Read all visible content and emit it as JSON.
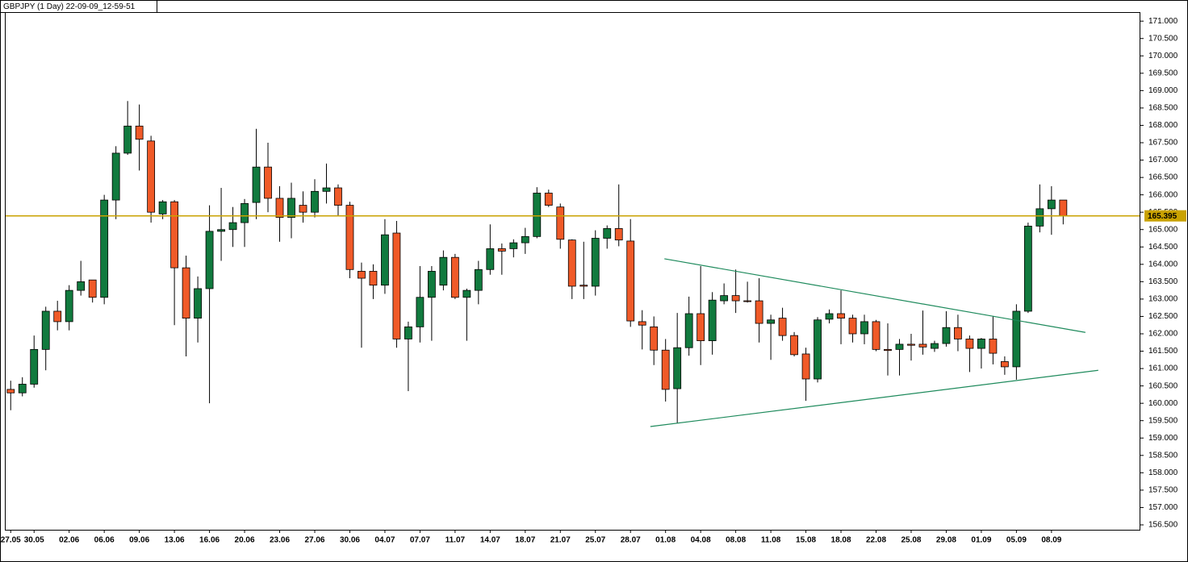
{
  "chart_data": {
    "type": "candlestick",
    "title": "GBPJPY (1 Day) 22-09-09_12-59-51",
    "up_color": "#117a3e",
    "down_color": "#f05a28",
    "ylim": [
      156.36,
      171.26
    ],
    "yticks": [
      {
        "value": 156.5,
        "label": "156.500"
      },
      {
        "value": 157,
        "label": "157.000"
      },
      {
        "value": 157.5,
        "label": "157.500"
      },
      {
        "value": 158,
        "label": "158.000"
      },
      {
        "value": 158.5,
        "label": "158.500"
      },
      {
        "value": 159,
        "label": "159.000"
      },
      {
        "value": 159.5,
        "label": "159.500"
      },
      {
        "value": 160,
        "label": "160.000"
      },
      {
        "value": 160.5,
        "label": "160.500"
      },
      {
        "value": 161,
        "label": "161.000"
      },
      {
        "value": 161.5,
        "label": "161.500"
      },
      {
        "value": 162,
        "label": "162.000"
      },
      {
        "value": 162.5,
        "label": "162.500"
      },
      {
        "value": 163,
        "label": "163.000"
      },
      {
        "value": 163.5,
        "label": "163.500"
      },
      {
        "value": 164,
        "label": "164.000"
      },
      {
        "value": 164.5,
        "label": "164.500"
      },
      {
        "value": 165,
        "label": "165.000"
      },
      {
        "value": 165.5,
        "label": "165.500"
      },
      {
        "value": 166,
        "label": "166.000"
      },
      {
        "value": 166.5,
        "label": "166.500"
      },
      {
        "value": 167,
        "label": "167.000"
      },
      {
        "value": 167.5,
        "label": "167.500"
      },
      {
        "value": 168,
        "label": "168.000"
      },
      {
        "value": 168.5,
        "label": "168.500"
      },
      {
        "value": 169,
        "label": "169.000"
      },
      {
        "value": 169.5,
        "label": "169.500"
      },
      {
        "value": 170,
        "label": "170.000"
      },
      {
        "value": 170.5,
        "label": "170.500"
      },
      {
        "value": 171,
        "label": "171.000"
      }
    ],
    "categories": [
      "27.05",
      null,
      "30.05",
      null,
      null,
      "02.06",
      null,
      null,
      "06.06",
      null,
      null,
      "09.06",
      null,
      null,
      "13.06",
      null,
      null,
      "16.06",
      null,
      null,
      "20.06",
      null,
      null,
      "23.06",
      null,
      null,
      "27.06",
      null,
      null,
      "30.06",
      null,
      null,
      "04.07",
      null,
      null,
      "07.07",
      null,
      null,
      "11.07",
      null,
      null,
      "14.07",
      null,
      null,
      "18.07",
      null,
      null,
      "21.07",
      null,
      null,
      "25.07",
      null,
      null,
      "28.07",
      null,
      null,
      "01.08",
      null,
      null,
      "04.08",
      null,
      null,
      "08.08",
      null,
      null,
      "11.08",
      null,
      null,
      "15.08",
      null,
      null,
      "18.08",
      null,
      null,
      "22.08",
      null,
      null,
      "25.08",
      null,
      null,
      "29.08",
      null,
      null,
      "01.09",
      null,
      null,
      "05.09",
      null,
      null,
      "08.09",
      null
    ],
    "ohlc": [
      [
        160.4,
        160.65,
        159.8,
        160.3
      ],
      [
        160.3,
        160.75,
        160.2,
        160.55
      ],
      [
        160.55,
        161.95,
        160.45,
        161.55
      ],
      [
        161.55,
        162.78,
        160.95,
        162.65
      ],
      [
        162.65,
        162.95,
        162.1,
        162.35
      ],
      [
        162.35,
        163.4,
        162.1,
        163.25
      ],
      [
        163.25,
        164.1,
        163.1,
        163.5
      ],
      [
        163.55,
        163.55,
        162.9,
        163.05
      ],
      [
        163.05,
        166.0,
        162.85,
        165.85
      ],
      [
        165.85,
        167.4,
        165.3,
        167.2
      ],
      [
        167.2,
        168.7,
        167.15,
        167.98
      ],
      [
        167.98,
        168.6,
        166.7,
        167.6
      ],
      [
        167.55,
        167.7,
        165.2,
        165.5
      ],
      [
        165.45,
        165.85,
        165.3,
        165.8
      ],
      [
        165.8,
        165.85,
        162.25,
        163.9
      ],
      [
        163.9,
        164.25,
        161.35,
        162.45
      ],
      [
        162.45,
        163.65,
        161.75,
        163.3
      ],
      [
        163.3,
        165.7,
        160.0,
        164.95
      ],
      [
        164.95,
        166.2,
        164.1,
        165.0
      ],
      [
        165.0,
        165.65,
        164.5,
        165.2
      ],
      [
        165.2,
        165.88,
        164.5,
        165.75
      ],
      [
        165.78,
        167.9,
        165.3,
        166.8
      ],
      [
        166.8,
        167.5,
        165.5,
        165.9
      ],
      [
        165.9,
        166.25,
        164.65,
        165.35
      ],
      [
        165.35,
        166.35,
        164.75,
        165.9
      ],
      [
        165.7,
        166.1,
        165.2,
        165.5
      ],
      [
        165.5,
        166.45,
        165.35,
        166.1
      ],
      [
        166.1,
        166.9,
        165.75,
        166.2
      ],
      [
        166.2,
        166.3,
        165.4,
        165.7
      ],
      [
        165.7,
        165.8,
        163.6,
        163.85
      ],
      [
        163.8,
        164.05,
        161.6,
        163.6
      ],
      [
        163.8,
        164.0,
        163.0,
        163.4
      ],
      [
        163.4,
        165.3,
        163.15,
        164.85
      ],
      [
        164.9,
        165.25,
        161.6,
        161.85
      ],
      [
        161.85,
        162.35,
        160.35,
        162.2
      ],
      [
        162.2,
        163.95,
        161.75,
        163.05
      ],
      [
        163.05,
        163.95,
        161.8,
        163.8
      ],
      [
        163.4,
        164.4,
        163.25,
        164.2
      ],
      [
        164.2,
        164.3,
        163.0,
        163.05
      ],
      [
        163.05,
        163.3,
        161.8,
        163.25
      ],
      [
        163.25,
        164.1,
        162.85,
        163.85
      ],
      [
        163.85,
        165.15,
        163.7,
        164.45
      ],
      [
        164.45,
        164.6,
        163.7,
        164.38
      ],
      [
        164.45,
        164.72,
        164.2,
        164.62
      ],
      [
        164.62,
        165.05,
        164.3,
        164.8
      ],
      [
        164.8,
        166.22,
        164.75,
        166.05
      ],
      [
        166.05,
        166.15,
        165.65,
        165.7
      ],
      [
        165.65,
        165.75,
        164.45,
        164.72
      ],
      [
        164.7,
        164.72,
        163.0,
        163.37
      ],
      [
        163.4,
        164.65,
        163.0,
        163.37
      ],
      [
        163.37,
        164.98,
        163.1,
        164.75
      ],
      [
        164.75,
        165.12,
        164.45,
        165.03
      ],
      [
        165.03,
        166.3,
        164.52,
        164.7
      ],
      [
        164.67,
        165.3,
        162.2,
        162.37
      ],
      [
        162.35,
        162.68,
        161.55,
        162.25
      ],
      [
        162.2,
        162.5,
        161.1,
        161.53
      ],
      [
        161.53,
        161.85,
        160.05,
        160.4
      ],
      [
        160.42,
        162.6,
        159.42,
        161.6
      ],
      [
        161.6,
        163.07,
        161.37,
        162.58
      ],
      [
        162.58,
        163.95,
        161.1,
        161.8
      ],
      [
        161.8,
        163.2,
        161.4,
        162.97
      ],
      [
        162.95,
        163.45,
        162.85,
        163.1
      ],
      [
        163.1,
        163.85,
        162.6,
        162.95
      ],
      [
        162.95,
        163.5,
        162.9,
        162.93
      ],
      [
        162.95,
        163.6,
        161.75,
        162.3
      ],
      [
        162.3,
        162.55,
        161.25,
        162.4
      ],
      [
        162.45,
        162.75,
        161.8,
        161.95
      ],
      [
        161.95,
        162.05,
        161.35,
        161.4
      ],
      [
        161.42,
        161.6,
        160.07,
        160.7
      ],
      [
        160.7,
        162.48,
        160.6,
        162.4
      ],
      [
        162.42,
        162.7,
        162.3,
        162.58
      ],
      [
        162.58,
        163.25,
        161.7,
        162.45
      ],
      [
        162.45,
        162.55,
        161.75,
        162.0
      ],
      [
        162.0,
        162.55,
        161.7,
        162.35
      ],
      [
        162.35,
        162.4,
        161.5,
        161.55
      ],
      [
        161.55,
        162.3,
        160.8,
        161.52
      ],
      [
        161.55,
        161.85,
        160.8,
        161.7
      ],
      [
        161.7,
        162.0,
        161.23,
        161.67
      ],
      [
        161.7,
        162.67,
        161.4,
        161.62
      ],
      [
        161.58,
        161.8,
        161.48,
        161.72
      ],
      [
        161.72,
        162.65,
        161.63,
        162.18
      ],
      [
        162.18,
        162.55,
        161.5,
        161.85
      ],
      [
        161.85,
        161.95,
        160.9,
        161.58
      ],
      [
        161.58,
        161.88,
        161.0,
        161.85
      ],
      [
        161.85,
        162.5,
        161.12,
        161.44
      ],
      [
        161.2,
        161.35,
        160.82,
        161.05
      ],
      [
        161.05,
        162.85,
        160.68,
        162.65
      ],
      [
        162.65,
        165.2,
        162.6,
        165.1
      ],
      [
        165.1,
        166.3,
        164.92,
        165.6
      ],
      [
        165.6,
        166.25,
        164.85,
        165.85
      ],
      [
        165.85,
        165.85,
        165.15,
        165.395
      ]
    ],
    "current_price": 165.395,
    "price_line_color": "#c9a200",
    "trendlines": [
      {
        "color": "#1e8a5c",
        "points": [
          [
            55.9,
            164.16
          ],
          [
            91.9,
            162.04
          ]
        ]
      },
      {
        "color": "#1e8a5c",
        "points": [
          [
            54.7,
            159.33
          ],
          [
            93.0,
            160.95
          ]
        ]
      }
    ]
  }
}
